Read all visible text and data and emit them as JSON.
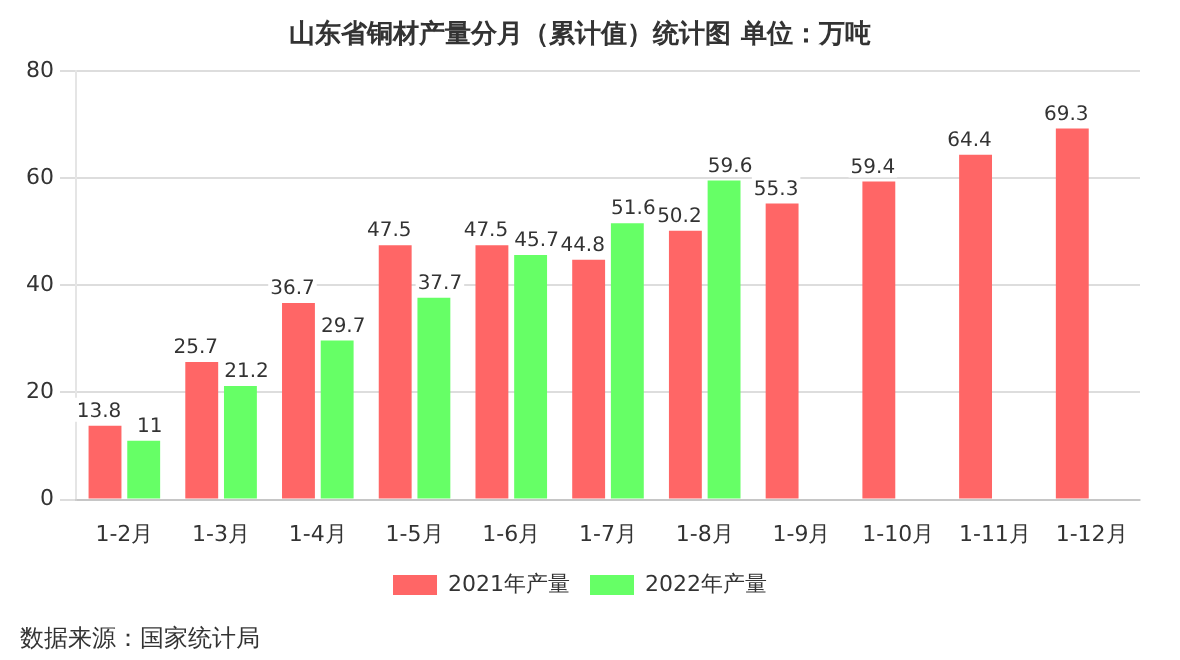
{
  "chart_data": {
    "type": "bar",
    "title": "山东省铜材产量分月（累计值）统计图 单位：万吨",
    "categories": [
      "1-2月",
      "1-3月",
      "1-4月",
      "1-5月",
      "1-6月",
      "1-7月",
      "1-8月",
      "1-9月",
      "1-10月",
      "1-11月",
      "1-12月"
    ],
    "series": [
      {
        "name": "2021年产量",
        "color": "#ff6666",
        "values": [
          13.8,
          25.7,
          36.7,
          47.5,
          47.5,
          44.8,
          50.2,
          55.3,
          59.4,
          64.4,
          69.3
        ]
      },
      {
        "name": "2022年产量",
        "color": "#66ff66",
        "values": [
          11,
          21.2,
          29.7,
          37.7,
          45.7,
          51.6,
          59.6,
          null,
          null,
          null,
          null
        ]
      }
    ],
    "ylim": [
      0,
      80
    ],
    "yticks": [
      0,
      20,
      40,
      60,
      80
    ],
    "grid": "y",
    "legend": "bottom",
    "data_labels": true,
    "annotations": [
      "数据来源：国家统计局"
    ]
  }
}
